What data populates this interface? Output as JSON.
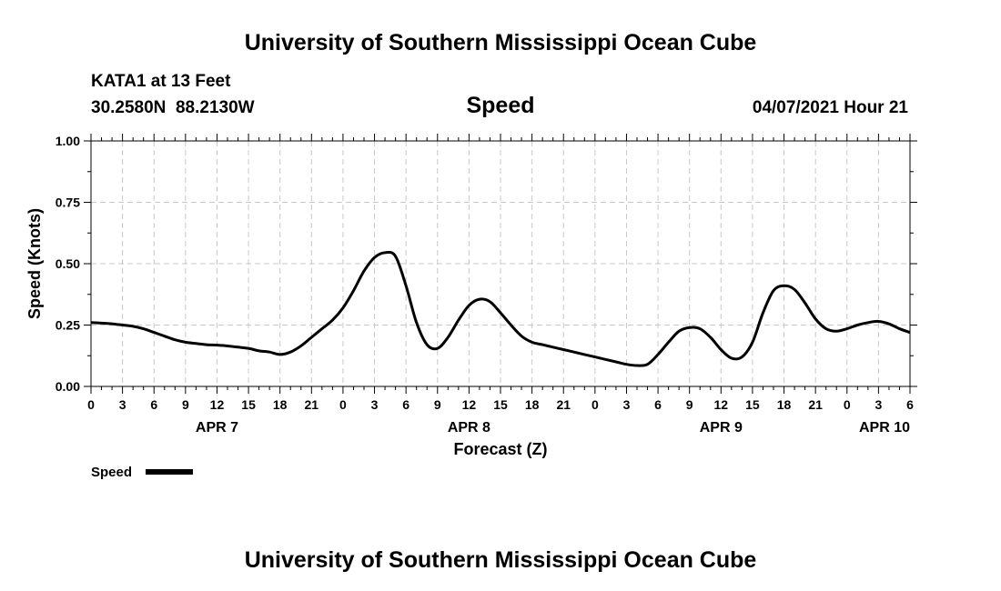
{
  "header": {
    "title": "University of Southern Mississippi Ocean Cube",
    "station": "KATA1 at 13 Feet",
    "coords": "30.2580N  88.2130W",
    "variable": "Speed",
    "datetime": "04/07/2021 Hour 21"
  },
  "footer": {
    "title": "University of Southern Mississippi Ocean Cube"
  },
  "legend": {
    "label": "Speed"
  },
  "chart_data": {
    "type": "line",
    "title": "Speed",
    "xlabel": "Forecast (Z)",
    "ylabel": "Speed (Knots)",
    "ylim": [
      0,
      1
    ],
    "xlim": [
      0,
      78
    ],
    "grid": true,
    "legend_position": "bottom-left",
    "y_ticks": [
      "0.00",
      "0.25",
      "0.50",
      "0.75",
      "1.00"
    ],
    "x_ticks": [
      "0",
      "3",
      "6",
      "9",
      "12",
      "15",
      "18",
      "21",
      "0",
      "3",
      "6",
      "9",
      "12",
      "15",
      "18",
      "21",
      "0",
      "3",
      "6",
      "9",
      "12",
      "15",
      "18",
      "21",
      "0",
      "3",
      "6"
    ],
    "date_labels": [
      {
        "label": "APR 7",
        "hour": 12
      },
      {
        "label": "APR 8",
        "hour": 36
      },
      {
        "label": "APR 9",
        "hour": 60
      },
      {
        "label": "APR 10",
        "hour": 78
      }
    ],
    "series": [
      {
        "name": "Speed",
        "x": [
          0,
          1,
          2,
          3,
          4,
          5,
          6,
          7,
          8,
          9,
          10,
          11,
          12,
          13,
          14,
          15,
          16,
          17,
          18,
          19,
          20,
          21,
          22,
          23,
          24,
          25,
          26,
          27,
          28,
          29,
          30,
          31,
          32,
          33,
          34,
          35,
          36,
          37,
          38,
          39,
          40,
          41,
          42,
          43,
          44,
          45,
          46,
          47,
          48,
          49,
          50,
          51,
          52,
          53,
          54,
          55,
          56,
          57,
          58,
          59,
          60,
          61,
          62,
          63,
          64,
          65,
          66,
          67,
          68,
          69,
          70,
          71,
          72,
          73,
          74,
          75,
          76,
          77,
          78
        ],
        "values": [
          0.26,
          0.258,
          0.255,
          0.25,
          0.245,
          0.235,
          0.22,
          0.205,
          0.19,
          0.18,
          0.175,
          0.17,
          0.168,
          0.165,
          0.16,
          0.155,
          0.145,
          0.14,
          0.13,
          0.14,
          0.165,
          0.2,
          0.235,
          0.27,
          0.32,
          0.39,
          0.47,
          0.525,
          0.545,
          0.53,
          0.41,
          0.26,
          0.17,
          0.155,
          0.2,
          0.27,
          0.33,
          0.355,
          0.345,
          0.3,
          0.25,
          0.205,
          0.18,
          0.17,
          0.16,
          0.15,
          0.14,
          0.13,
          0.12,
          0.11,
          0.1,
          0.09,
          0.085,
          0.09,
          0.13,
          0.18,
          0.225,
          0.24,
          0.235,
          0.2,
          0.15,
          0.115,
          0.12,
          0.18,
          0.3,
          0.39,
          0.41,
          0.395,
          0.34,
          0.275,
          0.235,
          0.225,
          0.235,
          0.25,
          0.26,
          0.265,
          0.255,
          0.235,
          0.22
        ]
      }
    ]
  }
}
